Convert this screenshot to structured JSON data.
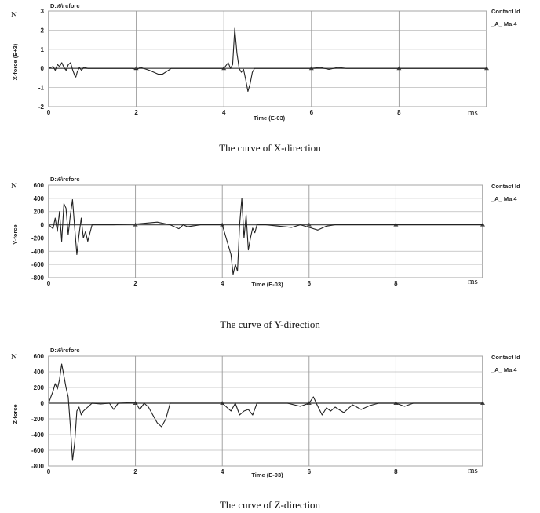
{
  "panels": [
    {
      "path_label": "D:\\6\\rcforc",
      "unit_left": "N",
      "ylabel": "X-force (E+3)",
      "xlabel": "Time (E-03)",
      "unit_right": "ms",
      "legend_title": "Contact Id",
      "legend_entry": "_A_ Ma 4",
      "caption": "The curve of X-direction"
    },
    {
      "path_label": "D:\\6\\rcforc",
      "unit_left": "N",
      "ylabel": "Y-force",
      "xlabel": "Time (E-03)",
      "unit_right": "ms",
      "legend_title": "Contact Id",
      "legend_entry": "_A_ Ma 4",
      "caption": "The curve of Y-direction"
    },
    {
      "path_label": "D:\\6\\rcforc",
      "unit_left": "N",
      "ylabel": "Z-force",
      "xlabel": "Time (E-03)",
      "unit_right": "ms",
      "legend_title": "Contact Id",
      "legend_entry": "_A_ Ma 4",
      "caption": "The curve of Z-direction"
    }
  ],
  "chart_data": [
    {
      "type": "line",
      "xlabel": "Time (E-03)",
      "ylabel": "X-force (E+3)",
      "xlim": [
        0,
        10
      ],
      "ylim": [
        -2,
        3
      ],
      "x_ticks": [
        0,
        2,
        4,
        6,
        8
      ],
      "y_ticks": [
        3,
        2,
        1,
        0,
        -1,
        -2
      ],
      "grid": true,
      "legend": "right",
      "series": [
        {
          "name": "_A_ Ma 4",
          "x": [
            0,
            0.1,
            0.15,
            0.2,
            0.25,
            0.3,
            0.35,
            0.4,
            0.45,
            0.5,
            0.55,
            0.6,
            0.62,
            0.65,
            0.7,
            0.75,
            0.8,
            0.9,
            1.0,
            1.2,
            1.6,
            1.9,
            2.0,
            2.1,
            2.3,
            2.5,
            2.6,
            2.7,
            2.8,
            3.0,
            3.5,
            4.0,
            4.1,
            4.15,
            4.2,
            4.25,
            4.3,
            4.35,
            4.4,
            4.45,
            4.5,
            4.55,
            4.6,
            4.65,
            4.7,
            4.8,
            5.0,
            5.5,
            6.0,
            6.2,
            6.4,
            6.6,
            6.8,
            7.0,
            7.5,
            8.0,
            9.0,
            10.0
          ],
          "y": [
            0,
            0.1,
            -0.1,
            0.2,
            0.1,
            0.3,
            0.05,
            -0.1,
            0.2,
            0.3,
            -0.1,
            -0.4,
            -0.45,
            -0.2,
            0.05,
            -0.1,
            0.05,
            0,
            0,
            0,
            0,
            0,
            -0.05,
            0.05,
            -0.1,
            -0.3,
            -0.3,
            -0.15,
            0,
            0,
            0,
            0,
            0.3,
            0,
            0.2,
            2.1,
            0.8,
            0,
            -0.2,
            -0.05,
            -0.6,
            -1.2,
            -0.8,
            -0.2,
            0,
            0,
            0,
            0,
            0,
            0.05,
            -0.05,
            0.05,
            0,
            0,
            0,
            0,
            0,
            0
          ]
        }
      ]
    },
    {
      "type": "line",
      "xlabel": "Time (E-03)",
      "ylabel": "Y-force",
      "xlim": [
        0,
        10
      ],
      "ylim": [
        -800,
        600
      ],
      "x_ticks": [
        0,
        2,
        4,
        6,
        8
      ],
      "y_ticks": [
        600,
        400,
        200,
        0,
        -200,
        -400,
        -600,
        -800
      ],
      "grid": true,
      "legend": "right",
      "series": [
        {
          "name": "_A_ Ma 4",
          "x": [
            0,
            0.05,
            0.1,
            0.15,
            0.2,
            0.25,
            0.3,
            0.35,
            0.4,
            0.45,
            0.5,
            0.55,
            0.6,
            0.65,
            0.7,
            0.75,
            0.8,
            0.85,
            0.9,
            1.0,
            1.5,
            2.0,
            2.5,
            2.8,
            3.0,
            3.1,
            3.2,
            3.5,
            4.0,
            4.2,
            4.25,
            4.3,
            4.35,
            4.4,
            4.45,
            4.5,
            4.55,
            4.6,
            4.65,
            4.7,
            4.75,
            4.8,
            4.9,
            5.0,
            5.3,
            5.6,
            5.8,
            6.0,
            6.2,
            6.4,
            6.6,
            6.8,
            7.0,
            7.5,
            8.0,
            9.0,
            10.0
          ],
          "y": [
            0,
            -30,
            -60,
            100,
            -100,
            200,
            -250,
            320,
            250,
            -150,
            150,
            380,
            -50,
            -450,
            -150,
            100,
            -200,
            -100,
            -250,
            0,
            0,
            10,
            40,
            0,
            -60,
            0,
            -30,
            0,
            0,
            -450,
            -750,
            -600,
            -700,
            0,
            400,
            -200,
            150,
            -380,
            -200,
            -50,
            -120,
            0,
            0,
            0,
            -20,
            -40,
            0,
            -40,
            -80,
            -20,
            0,
            0,
            0,
            0,
            0,
            0,
            0
          ]
        }
      ]
    },
    {
      "type": "line",
      "xlabel": "Time (E-03)",
      "ylabel": "Z-force",
      "xlim": [
        0,
        10
      ],
      "ylim": [
        -800,
        600
      ],
      "x_ticks": [
        0,
        2,
        4,
        6,
        8
      ],
      "y_ticks": [
        600,
        400,
        200,
        0,
        -200,
        -400,
        -600,
        -800
      ],
      "grid": true,
      "legend": "right",
      "series": [
        {
          "name": "_A_ Ma 4",
          "x": [
            0,
            0.05,
            0.1,
            0.15,
            0.2,
            0.25,
            0.3,
            0.35,
            0.4,
            0.45,
            0.5,
            0.55,
            0.6,
            0.65,
            0.7,
            0.75,
            0.8,
            0.9,
            1.0,
            1.2,
            1.4,
            1.5,
            1.6,
            2.0,
            2.1,
            2.2,
            2.3,
            2.4,
            2.5,
            2.6,
            2.7,
            2.8,
            3.0,
            3.5,
            4.0,
            4.1,
            4.2,
            4.3,
            4.4,
            4.5,
            4.6,
            4.7,
            4.8,
            5.0,
            5.5,
            5.8,
            6.0,
            6.1,
            6.2,
            6.3,
            6.4,
            6.5,
            6.6,
            6.8,
            7.0,
            7.2,
            7.4,
            7.6,
            8.0,
            8.2,
            8.4,
            8.6,
            9.0,
            10.0
          ],
          "y": [
            0,
            80,
            150,
            250,
            180,
            300,
            500,
            350,
            200,
            80,
            -300,
            -730,
            -500,
            -100,
            -50,
            -150,
            -100,
            -50,
            0,
            -10,
            0,
            -80,
            0,
            10,
            -80,
            0,
            -50,
            -150,
            -250,
            -300,
            -200,
            0,
            0,
            0,
            0,
            -50,
            -100,
            0,
            -150,
            -100,
            -80,
            -150,
            0,
            0,
            0,
            -40,
            0,
            80,
            -40,
            -150,
            -60,
            -100,
            -50,
            -120,
            -20,
            -80,
            -30,
            0,
            0,
            -40,
            0,
            0,
            0,
            0
          ]
        }
      ]
    }
  ]
}
